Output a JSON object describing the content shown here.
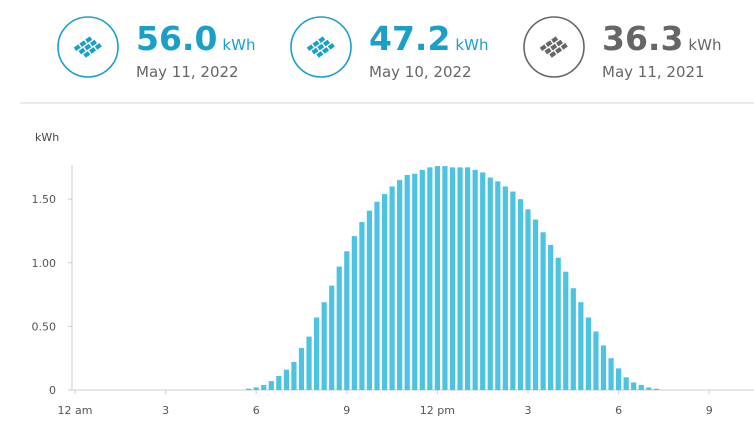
{
  "stats": [
    {
      "value": "56.0",
      "unit": "kWh",
      "date": "May 11, 2022",
      "color": "#1a9fc9"
    },
    {
      "value": "47.2",
      "unit": "kWh",
      "date": "May 10, 2022",
      "color": "#1a9fc9"
    },
    {
      "value": "36.3",
      "unit": "kWh",
      "date": "May 11, 2021",
      "color": "#666666"
    }
  ],
  "chart_data": {
    "type": "bar",
    "y_label": "kWh",
    "color": "#4dc3e3",
    "x": [
      5.75,
      6,
      6.25,
      6.5,
      6.75,
      7,
      7.25,
      7.5,
      7.75,
      8,
      8.25,
      8.5,
      8.75,
      9,
      9.25,
      9.5,
      9.75,
      10,
      10.25,
      10.5,
      10.75,
      11,
      11.25,
      11.5,
      11.75,
      12,
      12.25,
      12.5,
      12.75,
      13,
      13.25,
      13.5,
      13.75,
      14,
      14.25,
      14.5,
      14.75,
      15,
      15.25,
      15.5,
      15.75,
      16,
      16.25,
      16.5,
      16.75,
      17,
      17.25,
      17.5,
      17.75,
      18,
      18.25,
      18.5,
      18.75,
      19,
      19.25
    ],
    "values": [
      0.01,
      0.02,
      0.04,
      0.07,
      0.11,
      0.16,
      0.22,
      0.33,
      0.42,
      0.57,
      0.69,
      0.82,
      0.97,
      1.09,
      1.21,
      1.32,
      1.41,
      1.48,
      1.54,
      1.6,
      1.65,
      1.69,
      1.7,
      1.73,
      1.75,
      1.76,
      1.76,
      1.75,
      1.75,
      1.75,
      1.73,
      1.71,
      1.67,
      1.64,
      1.6,
      1.56,
      1.5,
      1.42,
      1.34,
      1.24,
      1.14,
      1.04,
      0.93,
      0.8,
      0.69,
      0.57,
      0.46,
      0.35,
      0.25,
      0.17,
      0.1,
      0.06,
      0.04,
      0.02,
      0.01
    ],
    "xlim": [
      0,
      22.6
    ],
    "xticks": [
      {
        "value": 0,
        "label": "12 am"
      },
      3,
      6,
      9,
      {
        "value": 12,
        "label": "12 pm"
      },
      {
        "value": 15,
        "label": "3"
      },
      {
        "value": 18,
        "label": "6"
      },
      {
        "value": 21,
        "label": "9"
      }
    ],
    "ylim": [
      0,
      1.8
    ],
    "yticks": [
      0,
      {
        "value": 0.5,
        "label": "0.50"
      },
      {
        "value": 1,
        "label": "1.00"
      },
      {
        "value": 1.5,
        "label": "1.50"
      }
    ],
    "grid": false
  }
}
